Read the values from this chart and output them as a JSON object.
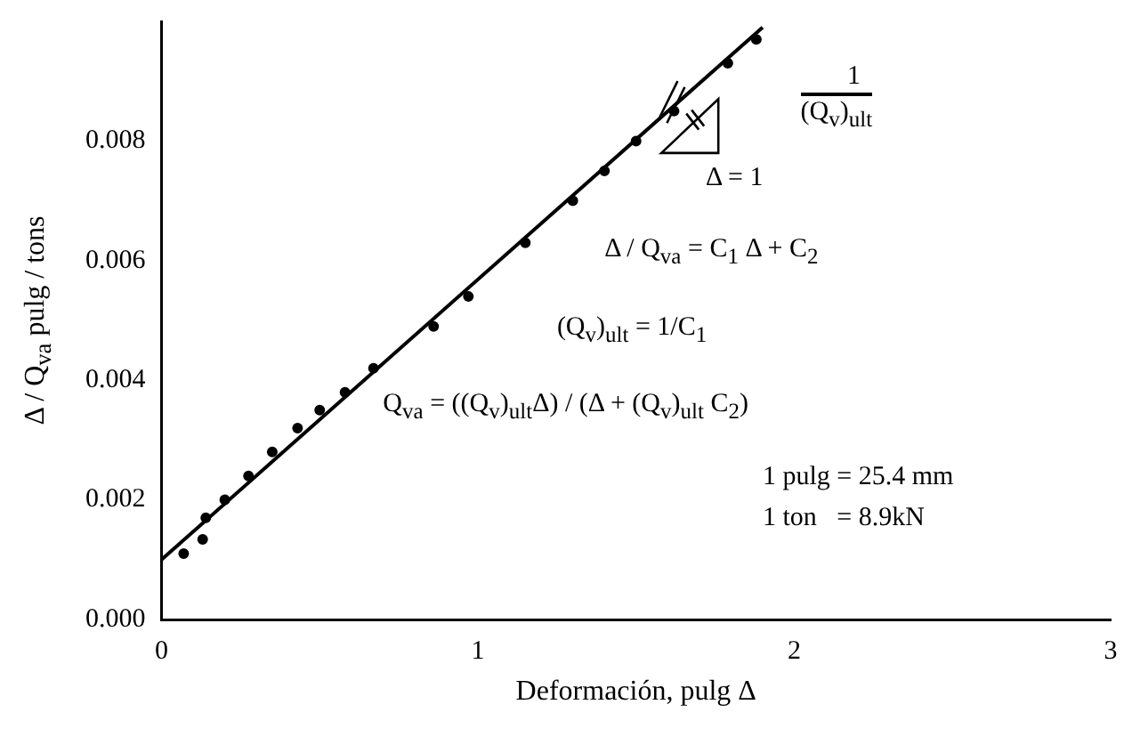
{
  "chart_data": {
    "type": "scatter",
    "xlabel": "Deformación, pulg Δ",
    "ylabel": "Δ / Q$_{va}$ pulg / tons",
    "xlim": [
      0,
      3
    ],
    "xticks": [
      0,
      1,
      2,
      3
    ],
    "ylim": [
      0,
      0.01
    ],
    "yticks": [
      {
        "value": 0,
        "label": "0.000"
      },
      {
        "value": 0.002,
        "label": "0.002"
      },
      {
        "value": 0.004,
        "label": "0.004"
      },
      {
        "value": 0.006,
        "label": "0.006"
      },
      {
        "value": 0.008,
        "label": "0.008"
      }
    ],
    "grid": false,
    "legend": false,
    "series": [
      {
        "marker": "circle",
        "color": "#000000",
        "x": [
          0.07,
          0.13,
          0.14,
          0.2,
          0.275,
          0.35,
          0.43,
          0.5,
          0.58,
          0.67,
          0.86,
          0.97,
          1.15,
          1.3,
          1.4,
          1.5,
          1.62,
          1.79,
          1.88
        ],
        "values": [
          0.0011,
          0.00134,
          0.0017,
          0.002,
          0.0024,
          0.0028,
          0.0032,
          0.0035,
          0.0038,
          0.0042,
          0.0049,
          0.0054,
          0.0063,
          0.007,
          0.0075,
          0.008,
          0.0085,
          0.0093,
          0.0097
        ]
      },
      {
        "type": "line",
        "marker": "none",
        "color": "#000000",
        "x": [
          0,
          1.9
        ],
        "values": [
          0.001,
          0.0099
        ]
      }
    ],
    "annotations": [
      "1",
      "(Q$_{v}$)$_{ult}$",
      "Δ = 1",
      "Δ / Q$_{va}$ = C$_{1}$ Δ + C$_{2}$",
      "(Q$_{v}$)$_{ult}$ = 1/C$_{1}$",
      "Q$_{va}$ = ((Q$_{v}$)$_{ult}$Δ) / (Δ + (Q$_{v}$)$_{ult}$ C$_{2}$)",
      "1 pulg = 25.4 mm",
      "1 ton   = 8.9kN"
    ]
  }
}
